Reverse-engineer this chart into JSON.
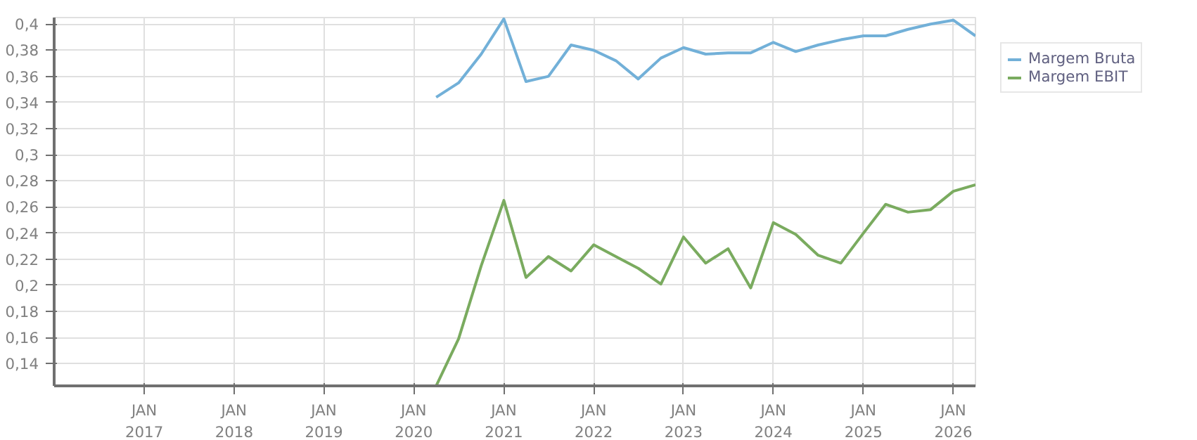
{
  "chart_data": {
    "type": "line",
    "x": [
      "2020-04",
      "2020-07",
      "2020-10",
      "2021-01",
      "2021-04",
      "2021-07",
      "2021-10",
      "2022-01",
      "2022-04",
      "2022-07",
      "2022-10",
      "2023-01",
      "2023-04",
      "2023-07",
      "2023-10",
      "2024-01",
      "2024-04",
      "2024-07",
      "2024-10",
      "2025-01",
      "2025-04",
      "2025-07",
      "2025-10",
      "2026-01",
      "2026-04"
    ],
    "series": [
      {
        "name": "Margem Bruta",
        "color": "#72b0d8",
        "values": [
          0.344,
          0.355,
          0.377,
          0.404,
          0.356,
          0.36,
          0.384,
          0.38,
          0.372,
          0.358,
          0.374,
          0.382,
          0.377,
          0.378,
          0.378,
          0.386,
          0.379,
          0.384,
          0.388,
          0.391,
          0.391,
          0.396,
          0.4,
          0.403,
          0.391
        ]
      },
      {
        "name": "Margem EBIT",
        "color": "#7aab5f",
        "values": [
          0.123,
          0.159,
          0.215,
          0.265,
          0.206,
          0.222,
          0.211,
          0.231,
          0.222,
          0.213,
          0.201,
          0.237,
          0.217,
          0.228,
          0.198,
          0.248,
          0.239,
          0.223,
          0.217,
          0.24,
          0.262,
          0.256,
          0.258,
          0.272,
          0.277
        ]
      }
    ],
    "xlim": [
      "2016-01",
      "2026-04"
    ],
    "xticks": [
      {
        "value": "2017-01",
        "label": "JAN\n2017"
      },
      {
        "value": "2018-01",
        "label": "JAN\n2018"
      },
      {
        "value": "2019-01",
        "label": "JAN\n2019"
      },
      {
        "value": "2020-01",
        "label": "JAN\n2020"
      },
      {
        "value": "2021-01",
        "label": "JAN\n2021"
      },
      {
        "value": "2022-01",
        "label": "JAN\n2022"
      },
      {
        "value": "2023-01",
        "label": "JAN\n2023"
      },
      {
        "value": "2024-01",
        "label": "JAN\n2024"
      },
      {
        "value": "2025-01",
        "label": "JAN\n2025"
      },
      {
        "value": "2026-01",
        "label": "JAN\n2026"
      }
    ],
    "ylim": [
      0.123,
      0.405
    ],
    "yticks": [
      {
        "value": 0.14,
        "label": "0,14"
      },
      {
        "value": 0.16,
        "label": "0,16"
      },
      {
        "value": 0.18,
        "label": "0,18"
      },
      {
        "value": 0.2,
        "label": "0,2"
      },
      {
        "value": 0.22,
        "label": "0,22"
      },
      {
        "value": 0.24,
        "label": "0,24"
      },
      {
        "value": 0.26,
        "label": "0,26"
      },
      {
        "value": 0.28,
        "label": "0,28"
      },
      {
        "value": 0.3,
        "label": "0,3"
      },
      {
        "value": 0.32,
        "label": "0,32"
      },
      {
        "value": 0.34,
        "label": "0,34"
      },
      {
        "value": 0.36,
        "label": "0,36"
      },
      {
        "value": 0.38,
        "label": "0,38"
      },
      {
        "value": 0.4,
        "label": "0,4"
      }
    ],
    "grid": true,
    "legend": "top right",
    "marker": "none",
    "line_style": "solid"
  }
}
